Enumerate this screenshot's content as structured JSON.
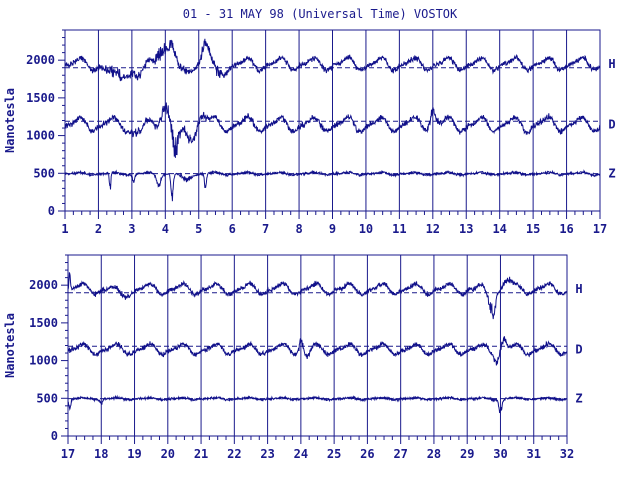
{
  "title": "01 - 31 MAY 98 (Universal Time) VOSTOK",
  "colors": {
    "ink": "#1a1a8c",
    "trace": "#10108a",
    "background": "#ffffff"
  },
  "chart_data": [
    {
      "type": "line",
      "ylabel": "Nanotesla",
      "xlim": [
        1,
        17
      ],
      "ylim": [
        0,
        2400
      ],
      "x_ticks": [
        "1",
        "2",
        "3",
        "4",
        "5",
        "6",
        "7",
        "8",
        "9",
        "10",
        "11",
        "12",
        "13",
        "14",
        "15",
        "16",
        "17"
      ],
      "y_ticks": [
        "0",
        "500",
        "1000",
        "1500",
        "2000"
      ],
      "grid": "vertical lines at each day",
      "baselines": [
        1900,
        1190,
        495
      ],
      "series": [
        {
          "name": "H",
          "base": 1950,
          "daily_amp": 70,
          "features": [
            [
              2.5,
              -180,
              0.35
            ],
            [
              3.2,
              -150,
              0.25
            ],
            [
              3.9,
              250,
              0.2
            ],
            [
              4.2,
              300,
              0.12
            ],
            [
              4.5,
              -150,
              0.2
            ],
            [
              5.2,
              250,
              0.15
            ],
            [
              5.6,
              -150,
              0.2
            ]
          ]
        },
        {
          "name": "D",
          "base": 1150,
          "daily_amp": 80,
          "features": [
            [
              3.2,
              -120,
              0.25
            ],
            [
              4.0,
              250,
              0.2
            ],
            [
              4.3,
              -350,
              0.15
            ],
            [
              4.7,
              -150,
              0.3
            ],
            [
              5.1,
              130,
              0.2
            ],
            [
              12.0,
              200,
              0.12
            ]
          ]
        },
        {
          "name": "Z",
          "base": 495,
          "daily_amp": 15,
          "features": [
            [
              2.35,
              -200,
              0.03
            ],
            [
              3.05,
              -100,
              0.05
            ],
            [
              3.8,
              -150,
              0.08
            ],
            [
              4.2,
              -300,
              0.05
            ],
            [
              5.2,
              -180,
              0.04
            ],
            [
              4.6,
              -80,
              0.2
            ]
          ]
        }
      ]
    },
    {
      "type": "line",
      "ylabel": "Nanotesla",
      "xlim": [
        17,
        32
      ],
      "ylim": [
        0,
        2400
      ],
      "x_ticks": [
        "17",
        "18",
        "19",
        "20",
        "21",
        "22",
        "23",
        "24",
        "25",
        "26",
        "27",
        "28",
        "29",
        "30",
        "31",
        "32"
      ],
      "y_ticks": [
        "0",
        "500",
        "1000",
        "1500",
        "2000"
      ],
      "grid": "vertical lines at each day",
      "baselines": [
        1900,
        1190,
        495
      ],
      "series": [
        {
          "name": "H",
          "base": 1950,
          "daily_amp": 60,
          "features": [
            [
              17.05,
              250,
              0.03
            ],
            [
              18.6,
              -100,
              0.2
            ],
            [
              29.7,
              -200,
              0.15
            ],
            [
              29.8,
              -150,
              0.05
            ],
            [
              30.2,
              120,
              0.15
            ]
          ]
        },
        {
          "name": "D",
          "base": 1150,
          "daily_amp": 60,
          "features": [
            [
              24.0,
              130,
              0.08
            ],
            [
              24.2,
              -100,
              0.1
            ],
            [
              29.9,
              -120,
              0.1
            ],
            [
              30.1,
              150,
              0.1
            ]
          ]
        },
        {
          "name": "Z",
          "base": 495,
          "daily_amp": 12,
          "features": [
            [
              17.05,
              -150,
              0.04
            ],
            [
              30.0,
              -180,
              0.06
            ],
            [
              18.0,
              -60,
              0.05
            ]
          ]
        }
      ]
    }
  ]
}
